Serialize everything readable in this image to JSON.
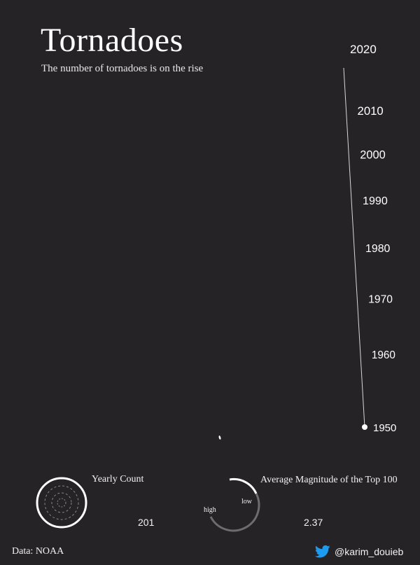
{
  "header": {
    "title": "Tornadoes",
    "subtitle": "The number of tornadoes is on the rise"
  },
  "chart_data": {
    "type": "timeline",
    "axis": {
      "label": "",
      "ticks": [
        1950,
        1960,
        1970,
        1980,
        1990,
        2000,
        2010,
        2020
      ],
      "range": [
        1950,
        2020
      ]
    },
    "current_year": 1950,
    "grid": false
  },
  "legend": {
    "yearly_count": {
      "label": "Yearly Count",
      "value": "201"
    },
    "magnitude": {
      "label": "Average Magnitude of the Top 100",
      "value": "2.37",
      "high_label": "high",
      "low_label": "low"
    }
  },
  "footer": {
    "source": "Data: NOAA",
    "credit": "@karim_douieb"
  },
  "colors": {
    "background": "#252326",
    "foreground": "#ffffff",
    "twitter": "#1d9bf0"
  }
}
